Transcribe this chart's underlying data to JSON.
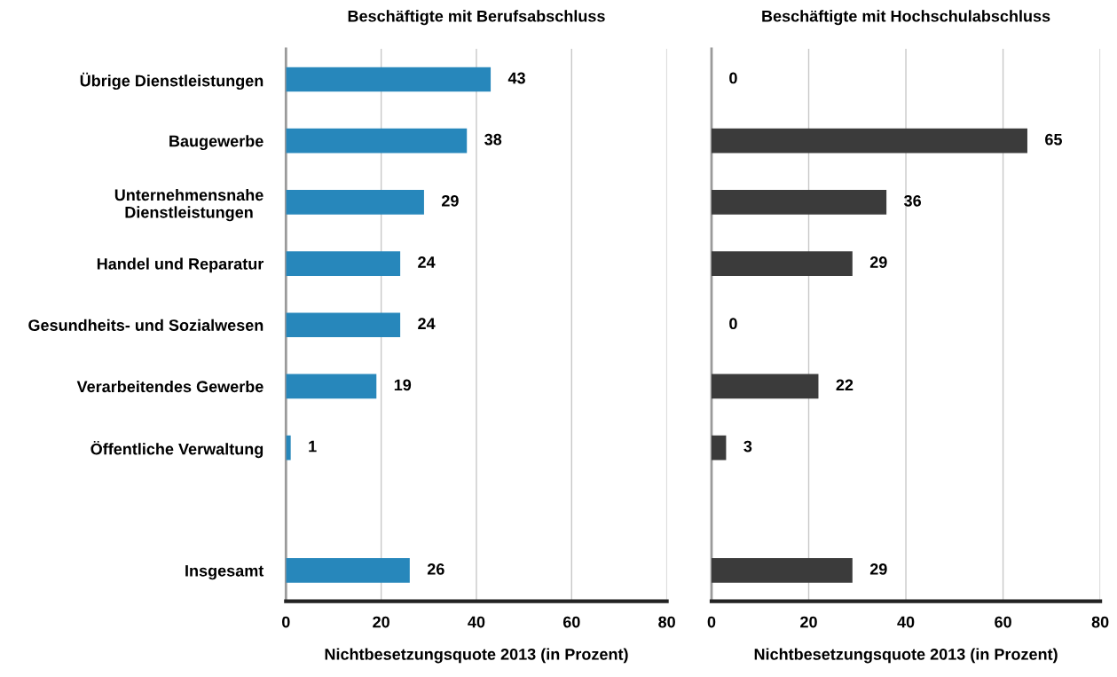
{
  "chart_data": [
    {
      "type": "bar",
      "orientation": "horizontal",
      "title": "Beschäftigte mit Berufsabschluss",
      "xlabel": "Nichtbesetzungsquote 2013 (in Prozent)",
      "categories": [
        "Übrige Dienstleistungen",
        "Baugewerbe",
        "Unternehmensnahe\nDienstleistungen",
        "Handel und Reparatur",
        "Gesundheits- und Sozialwesen",
        "Verarbeitendes Gewerbe",
        "Öffentliche Verwaltung",
        null,
        "Insgesamt"
      ],
      "values": [
        43,
        38,
        29,
        24,
        24,
        19,
        1,
        null,
        26
      ],
      "color": "#2787bb",
      "xlim": [
        0,
        80
      ],
      "xticks": [
        0,
        20,
        40,
        60,
        80
      ],
      "grid": "x",
      "data_labels": true
    },
    {
      "type": "bar",
      "orientation": "horizontal",
      "title": "Beschäftigte mit Hochschulabschluss",
      "xlabel": "Nichtbesetzungsquote 2013 (in Prozent)",
      "categories": [
        null,
        null,
        null,
        null,
        null,
        null,
        null,
        null,
        null
      ],
      "values": [
        0,
        65,
        36,
        29,
        0,
        22,
        3,
        null,
        29
      ],
      "color": "#3b3b3b",
      "xlim": [
        0,
        80
      ],
      "xticks": [
        0,
        20,
        40,
        60,
        80
      ],
      "grid": "x",
      "data_labels": true,
      "tick_labels": "x"
    }
  ]
}
